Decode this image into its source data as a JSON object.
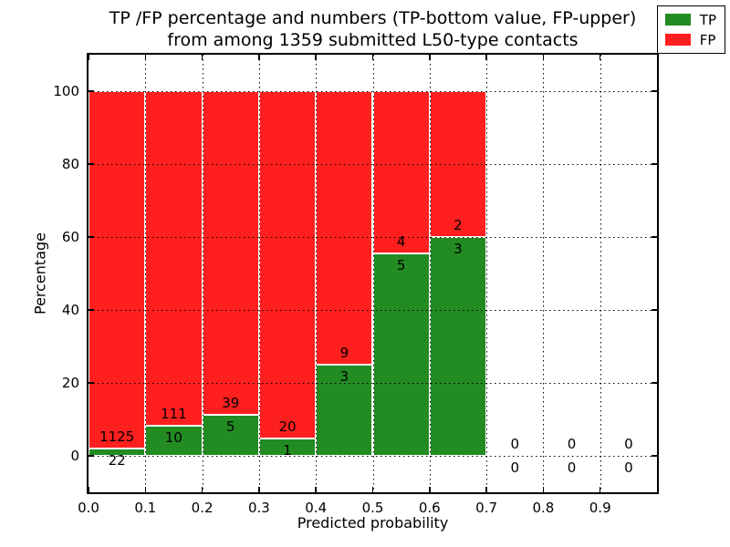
{
  "figure": {
    "title_line1": "TP /FP percentage and numbers (TP-bottom value, FP-upper)",
    "title_line2": "from among 1359 submitted L50-type contacts",
    "xlabel": "Predicted probability",
    "ylabel": "Percentage"
  },
  "legend": {
    "position": "upper right",
    "items": [
      {
        "label": "TP",
        "color": "#228b22"
      },
      {
        "label": "FP",
        "color": "#ff1f1f"
      }
    ]
  },
  "colors": {
    "tp": "#228b22",
    "fp": "#ff1f1f",
    "grid": "#000000",
    "bar_edge": "#ffffff",
    "background": "#ffffff"
  },
  "chart_data": {
    "type": "bar",
    "stacked": true,
    "title": "TP /FP percentage and numbers (TP-bottom value, FP-upper) from among 1359 submitted L50-type contacts",
    "xlabel": "Predicted probability",
    "ylabel": "Percentage",
    "total_contacts": 1359,
    "xlim": [
      0.0,
      1.0
    ],
    "ylim": [
      -10,
      110
    ],
    "xticks": [
      0.0,
      0.1,
      0.2,
      0.3,
      0.4,
      0.5,
      0.6,
      0.7,
      0.8,
      0.9
    ],
    "xtick_labels": [
      "0.0",
      "0.1",
      "0.2",
      "0.3",
      "0.4",
      "0.5",
      "0.6",
      "0.7",
      "0.8",
      "0.9"
    ],
    "yticks": [
      0,
      20,
      40,
      60,
      80,
      100
    ],
    "ytick_labels": [
      "0",
      "20",
      "40",
      "60",
      "80",
      "100"
    ],
    "grid": "dotted",
    "legend_position": "upper right",
    "bin_width": 0.1,
    "bins": [
      {
        "x_start": 0.0,
        "tp_count": 22,
        "fp_count": 1125,
        "tp_pct": 1.92,
        "fp_pct": 98.08
      },
      {
        "x_start": 0.1,
        "tp_count": 10,
        "fp_count": 111,
        "tp_pct": 8.26,
        "fp_pct": 91.74
      },
      {
        "x_start": 0.2,
        "tp_count": 5,
        "fp_count": 39,
        "tp_pct": 11.36,
        "fp_pct": 88.64
      },
      {
        "x_start": 0.3,
        "tp_count": 1,
        "fp_count": 20,
        "tp_pct": 4.76,
        "fp_pct": 95.24
      },
      {
        "x_start": 0.4,
        "tp_count": 3,
        "fp_count": 9,
        "tp_pct": 25.0,
        "fp_pct": 75.0
      },
      {
        "x_start": 0.5,
        "tp_count": 5,
        "fp_count": 4,
        "tp_pct": 55.56,
        "fp_pct": 44.44
      },
      {
        "x_start": 0.6,
        "tp_count": 3,
        "fp_count": 2,
        "tp_pct": 60.0,
        "fp_pct": 40.0
      },
      {
        "x_start": 0.7,
        "tp_count": 0,
        "fp_count": 0,
        "tp_pct": 0,
        "fp_pct": 0
      },
      {
        "x_start": 0.8,
        "tp_count": 0,
        "fp_count": 0,
        "tp_pct": 0,
        "fp_pct": 0
      },
      {
        "x_start": 0.9,
        "tp_count": 0,
        "fp_count": 0,
        "tp_pct": 0,
        "fp_pct": 0
      }
    ],
    "series": [
      {
        "name": "TP",
        "color": "#228b22",
        "values": [
          1.92,
          8.26,
          11.36,
          4.76,
          25.0,
          55.56,
          60.0,
          0,
          0,
          0
        ]
      },
      {
        "name": "FP",
        "color": "#ff1f1f",
        "values": [
          98.08,
          91.74,
          88.64,
          95.24,
          75.0,
          44.44,
          40.0,
          0,
          0,
          0
        ]
      }
    ]
  }
}
